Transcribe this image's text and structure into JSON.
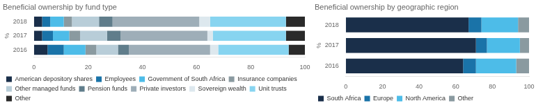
{
  "chart_data": [
    {
      "type": "bar",
      "orientation": "horizontal",
      "stacked": true,
      "title": "Beneficial ownership by fund type",
      "ylabel": "%",
      "categories": [
        "2016",
        "2017",
        "2018"
      ],
      "series": [
        {
          "name": "American depository shares",
          "color": "#1a2f4a",
          "values": [
            5,
            3,
            3
          ]
        },
        {
          "name": "Employees",
          "color": "#1a73a8",
          "values": [
            6,
            4,
            3
          ]
        },
        {
          "name": "Government of South Africa",
          "color": "#4dbce8",
          "values": [
            8,
            6,
            5
          ]
        },
        {
          "name": "Insurance companies",
          "color": "#8a9aa0",
          "values": [
            4,
            4,
            3
          ]
        },
        {
          "name": "Other managed funds",
          "color": "#b8cdd8",
          "values": [
            8,
            10,
            10
          ]
        },
        {
          "name": "Pension funds",
          "color": "#607d8b",
          "values": [
            4,
            5,
            5
          ]
        },
        {
          "name": "Private investors",
          "color": "#9eaeb8",
          "values": [
            30,
            32,
            32
          ]
        },
        {
          "name": "Sovereign wealth",
          "color": "#dde8ee",
          "values": [
            3,
            2,
            4
          ]
        },
        {
          "name": "Unit trusts",
          "color": "#87d4f0",
          "values": [
            26,
            27,
            28
          ]
        },
        {
          "name": "Other",
          "color": "#2a2a2a",
          "values": [
            6,
            7,
            7
          ]
        }
      ],
      "xlim": [
        0,
        100
      ],
      "xticks": [
        0,
        20,
        40,
        60,
        80,
        100
      ],
      "grid": false,
      "legend": "bottom"
    },
    {
      "type": "bar",
      "orientation": "horizontal",
      "stacked": true,
      "title": "Beneficial ownership by geographic region",
      "ylabel": "%",
      "categories": [
        "2016",
        "2017",
        "2018"
      ],
      "series": [
        {
          "name": "South Africa",
          "color": "#1a2f4a",
          "values": [
            64,
            71,
            67
          ]
        },
        {
          "name": "Europe",
          "color": "#1a73a8",
          "values": [
            7,
            6,
            7
          ]
        },
        {
          "name": "North America",
          "color": "#4dbce8",
          "values": [
            22,
            18,
            20
          ]
        },
        {
          "name": "Other",
          "color": "#8a9aa0",
          "values": [
            7,
            5,
            6
          ]
        }
      ],
      "xlim": [
        0,
        100
      ],
      "xticks": [
        0,
        20,
        40,
        60,
        80,
        100
      ],
      "grid": false,
      "legend": "bottom"
    }
  ]
}
